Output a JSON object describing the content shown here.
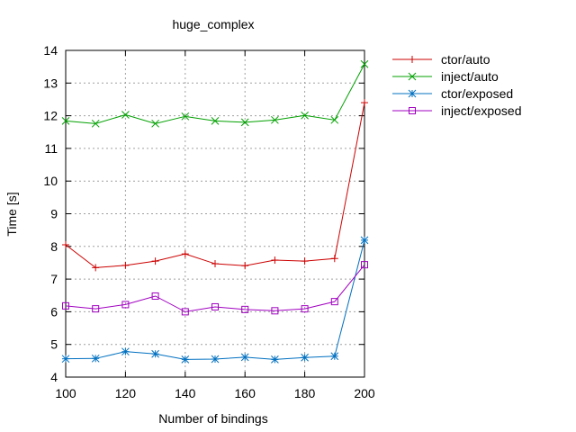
{
  "chart_data": {
    "type": "line",
    "title": "huge_complex",
    "xlabel": "Number of bindings",
    "ylabel": "Time [s]",
    "xlim": [
      100,
      200
    ],
    "ylim": [
      4,
      14
    ],
    "xticks": [
      100,
      120,
      140,
      160,
      180,
      200
    ],
    "yticks": [
      4,
      5,
      6,
      7,
      8,
      9,
      10,
      11,
      12,
      13,
      14
    ],
    "grid": true,
    "legend_position": "outside-right",
    "x": [
      100,
      110,
      120,
      130,
      140,
      150,
      160,
      170,
      180,
      190,
      200
    ],
    "series": [
      {
        "name": "ctor/auto",
        "color": "#cc0000",
        "marker": "plus",
        "values": [
          8.05,
          7.35,
          7.42,
          7.55,
          7.77,
          7.47,
          7.41,
          7.58,
          7.55,
          7.63,
          12.4
        ]
      },
      {
        "name": "inject/auto",
        "color": "#00a000",
        "marker": "cross",
        "values": [
          11.84,
          11.76,
          12.03,
          11.76,
          11.98,
          11.84,
          11.8,
          11.87,
          12.01,
          11.87,
          13.58
        ]
      },
      {
        "name": "ctor/exposed",
        "color": "#0070c0",
        "marker": "star",
        "values": [
          4.56,
          4.57,
          4.78,
          4.71,
          4.54,
          4.55,
          4.61,
          4.54,
          4.6,
          4.64,
          8.19
        ]
      },
      {
        "name": "inject/exposed",
        "color": "#a000c0",
        "marker": "box",
        "values": [
          6.18,
          6.09,
          6.22,
          6.48,
          6.0,
          6.15,
          6.07,
          6.03,
          6.09,
          6.31,
          7.44
        ]
      }
    ]
  }
}
